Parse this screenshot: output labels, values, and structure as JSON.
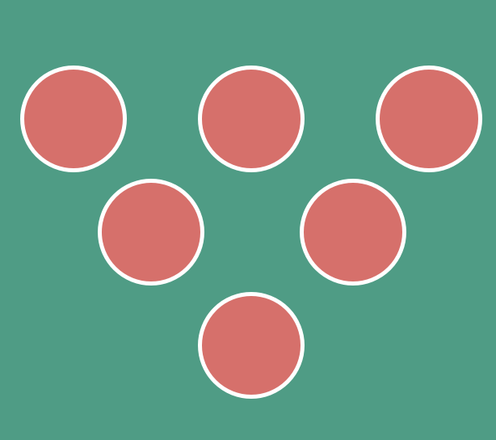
{
  "colors": {
    "background": "#4f9c85",
    "ball_fill": "#d6706b",
    "ball_outline": "#ffffff"
  },
  "balls": [
    {
      "row": 1,
      "col": 1
    },
    {
      "row": 1,
      "col": 2
    },
    {
      "row": 1,
      "col": 3
    },
    {
      "row": 2,
      "col": 1
    },
    {
      "row": 2,
      "col": 2
    },
    {
      "row": 3,
      "col": 1
    }
  ]
}
